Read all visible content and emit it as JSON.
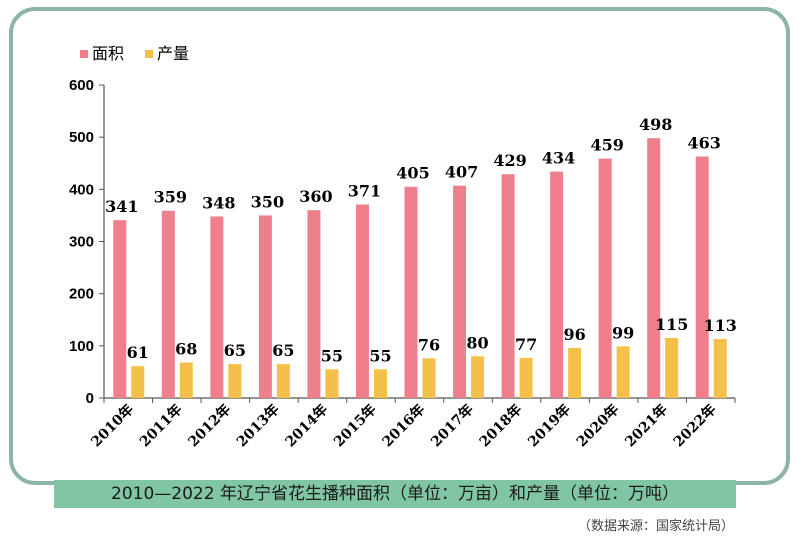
{
  "chart_data": {
    "type": "bar",
    "title": "2010—2022 年辽宁省花生播种面积（单位：万亩）和产量（单位：万吨）",
    "categories": [
      "2010年",
      "2011年",
      "2012年",
      "2013年",
      "2014年",
      "2015年",
      "2016年",
      "2017年",
      "2018年",
      "2019年",
      "2020年",
      "2021年",
      "2022年"
    ],
    "series": [
      {
        "name": "面积",
        "color": "#ef7f8c",
        "values": [
          341,
          359,
          348,
          350,
          360,
          371,
          405,
          407,
          429,
          434,
          459,
          498,
          463
        ]
      },
      {
        "name": "产量",
        "color": "#f5c04a",
        "values": [
          61,
          68,
          65,
          65,
          55,
          55,
          76,
          80,
          77,
          96,
          99,
          115,
          113
        ]
      }
    ],
    "ylim": [
      0,
      600
    ],
    "yticks": [
      0,
      100,
      200,
      300,
      400,
      500,
      600
    ],
    "xlabel": "",
    "ylabel": "",
    "legend": "top-left",
    "source": "（数据来源：国家统计局）"
  }
}
